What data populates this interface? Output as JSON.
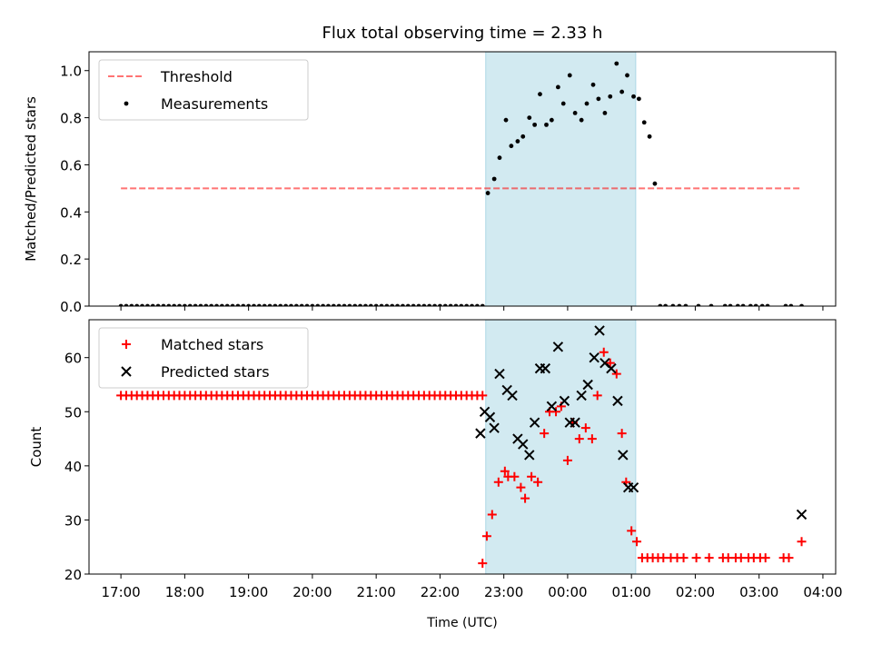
{
  "figure": {
    "title": "Flux total observing time = 2.33 h",
    "xlabel": "Time (UTC)"
  },
  "colors": {
    "highlight_band": "#add8e6",
    "threshold": "#ff0000",
    "measurements": "#000000",
    "matched": "#ff0000",
    "predicted": "#000000"
  },
  "chart_data": [
    {
      "type": "scatter",
      "panel": "top",
      "title": "Flux total observing time = 2.33 h",
      "xlabel": "",
      "ylabel": "Matched/Predicted stars",
      "x_unit": "hours since 17:00 UTC",
      "xlim": [
        -0.5,
        11.2
      ],
      "ylim": [
        0.0,
        1.08
      ],
      "yticks": [
        0.0,
        0.2,
        0.4,
        0.6,
        0.8,
        1.0
      ],
      "ytick_labels": [
        "0.0",
        "0.2",
        "0.4",
        "0.6",
        "0.8",
        "1.0"
      ],
      "grid": false,
      "legend": "top-left",
      "highlight_span": [
        "22:43",
        "01:04"
      ],
      "series": [
        {
          "name": "Threshold",
          "kind": "dashed-line",
          "x": [
            "17:00",
            "03:40"
          ],
          "y": [
            0.5,
            0.5
          ]
        },
        {
          "name": "Measurements",
          "kind": "dot",
          "x": [
            "17:00",
            "17:05",
            "17:10",
            "17:15",
            "17:20",
            "17:25",
            "17:30",
            "17:35",
            "17:40",
            "17:45",
            "17:50",
            "17:55",
            "18:00",
            "18:05",
            "18:10",
            "18:15",
            "18:20",
            "18:25",
            "18:30",
            "18:35",
            "18:40",
            "18:45",
            "18:50",
            "18:55",
            "19:00",
            "19:05",
            "19:10",
            "19:15",
            "19:20",
            "19:25",
            "19:30",
            "19:35",
            "19:40",
            "19:45",
            "19:50",
            "19:55",
            "20:00",
            "20:05",
            "20:10",
            "20:15",
            "20:20",
            "20:25",
            "20:30",
            "20:35",
            "20:40",
            "20:45",
            "20:50",
            "20:55",
            "21:00",
            "21:05",
            "21:10",
            "21:15",
            "21:20",
            "21:25",
            "21:30",
            "21:35",
            "21:40",
            "21:45",
            "21:50",
            "21:55",
            "22:00",
            "22:05",
            "22:10",
            "22:15",
            "22:20",
            "22:25",
            "22:30",
            "22:35",
            "22:40",
            "22:45",
            "22:51",
            "22:56",
            "23:02",
            "23:07",
            "23:13",
            "23:18",
            "23:24",
            "23:29",
            "23:34",
            "23:40",
            "23:45",
            "23:51",
            "23:56",
            "00:02",
            "00:07",
            "00:13",
            "00:18",
            "00:24",
            "00:29",
            "00:35",
            "00:40",
            "00:46",
            "00:51",
            "00:56",
            "01:02",
            "01:07",
            "01:12",
            "01:17",
            "01:22",
            "01:27",
            "01:32",
            "01:39",
            "01:45",
            "01:51",
            "02:03",
            "02:15",
            "02:28",
            "02:33",
            "02:40",
            "02:45",
            "02:52",
            "02:57",
            "03:03",
            "03:08",
            "03:25",
            "03:30",
            "03:40"
          ],
          "y": [
            0,
            0,
            0,
            0,
            0,
            0,
            0,
            0,
            0,
            0,
            0,
            0,
            0,
            0,
            0,
            0,
            0,
            0,
            0,
            0,
            0,
            0,
            0,
            0,
            0,
            0,
            0,
            0,
            0,
            0,
            0,
            0,
            0,
            0,
            0,
            0,
            0,
            0,
            0,
            0,
            0,
            0,
            0,
            0,
            0,
            0,
            0,
            0,
            0,
            0,
            0,
            0,
            0,
            0,
            0,
            0,
            0,
            0,
            0,
            0,
            0,
            0,
            0,
            0,
            0,
            0,
            0,
            0,
            0,
            0.48,
            0.54,
            0.63,
            0.79,
            0.68,
            0.7,
            0.72,
            0.8,
            0.77,
            0.9,
            0.77,
            0.79,
            0.93,
            0.86,
            0.98,
            0.82,
            0.79,
            0.86,
            0.94,
            0.88,
            0.82,
            0.89,
            1.03,
            0.91,
            0.98,
            0.89,
            0.88,
            0.78,
            0.72,
            0.52,
            0,
            0,
            0,
            0,
            0,
            0,
            0,
            0,
            0,
            0,
            0,
            0,
            0,
            0,
            0,
            0,
            0,
            0
          ]
        }
      ]
    },
    {
      "type": "scatter",
      "panel": "bottom",
      "xlabel": "Time (UTC)",
      "ylabel": "Count",
      "x_unit": "hours since 17:00 UTC",
      "xlim": [
        -0.5,
        11.2
      ],
      "ylim": [
        20,
        67
      ],
      "yticks": [
        20,
        30,
        40,
        50,
        60
      ],
      "ytick_labels": [
        "20",
        "30",
        "40",
        "50",
        "60"
      ],
      "xticks": [
        0,
        1,
        2,
        3,
        4,
        5,
        6,
        7,
        8,
        9,
        10,
        11
      ],
      "xtick_labels": [
        "17:00",
        "18:00",
        "19:00",
        "20:00",
        "21:00",
        "22:00",
        "23:00",
        "00:00",
        "01:00",
        "02:00",
        "03:00",
        "04:00"
      ],
      "grid": false,
      "legend": "top-left",
      "highlight_span": [
        "22:43",
        "01:04"
      ],
      "series": [
        {
          "name": "Matched stars",
          "kind": "plus",
          "x": [
            "17:00",
            "17:05",
            "17:10",
            "17:15",
            "17:20",
            "17:25",
            "17:30",
            "17:35",
            "17:40",
            "17:45",
            "17:50",
            "17:55",
            "18:00",
            "18:05",
            "18:10",
            "18:15",
            "18:20",
            "18:25",
            "18:30",
            "18:35",
            "18:40",
            "18:45",
            "18:50",
            "18:55",
            "19:00",
            "19:05",
            "19:10",
            "19:15",
            "19:20",
            "19:25",
            "19:30",
            "19:35",
            "19:40",
            "19:45",
            "19:50",
            "19:55",
            "20:00",
            "20:05",
            "20:10",
            "20:15",
            "20:20",
            "20:25",
            "20:30",
            "20:35",
            "20:40",
            "20:45",
            "20:50",
            "20:55",
            "21:00",
            "21:05",
            "21:10",
            "21:15",
            "21:20",
            "21:25",
            "21:30",
            "21:35",
            "21:40",
            "21:45",
            "21:50",
            "21:55",
            "22:00",
            "22:05",
            "22:10",
            "22:15",
            "22:20",
            "22:25",
            "22:30",
            "22:35",
            "22:40",
            "22:40",
            "22:44",
            "22:49",
            "22:55",
            "23:01",
            "23:04",
            "23:10",
            "23:16",
            "23:20",
            "23:26",
            "23:32",
            "23:38",
            "23:43",
            "23:49",
            "23:54",
            "00:00",
            "00:05",
            "00:11",
            "00:17",
            "00:23",
            "00:28",
            "00:34",
            "00:40",
            "00:46",
            "00:51",
            "00:55",
            "01:00",
            "01:05",
            "01:10",
            "01:15",
            "01:20",
            "01:25",
            "01:30",
            "01:37",
            "01:43",
            "01:49",
            "02:01",
            "02:13",
            "02:26",
            "02:31",
            "02:38",
            "02:43",
            "02:50",
            "02:55",
            "03:01",
            "03:06",
            "03:23",
            "03:28",
            "03:40"
          ],
          "y": [
            53,
            53,
            53,
            53,
            53,
            53,
            53,
            53,
            53,
            53,
            53,
            53,
            53,
            53,
            53,
            53,
            53,
            53,
            53,
            53,
            53,
            53,
            53,
            53,
            53,
            53,
            53,
            53,
            53,
            53,
            53,
            53,
            53,
            53,
            53,
            53,
            53,
            53,
            53,
            53,
            53,
            53,
            53,
            53,
            53,
            53,
            53,
            53,
            53,
            53,
            53,
            53,
            53,
            53,
            53,
            53,
            53,
            53,
            53,
            53,
            53,
            53,
            53,
            53,
            53,
            53,
            53,
            53,
            53,
            22,
            27,
            31,
            37,
            39,
            38,
            38,
            36,
            34,
            38,
            37,
            46,
            50,
            50,
            51,
            41,
            48,
            45,
            47,
            45,
            53,
            61,
            59,
            57,
            46,
            37,
            28,
            26,
            23,
            23,
            23,
            23,
            23,
            23,
            23,
            23,
            23,
            23,
            23,
            23,
            23,
            23,
            23,
            23,
            23,
            23,
            23,
            23,
            26
          ]
        },
        {
          "name": "Predicted stars",
          "kind": "x",
          "x": [
            "22:38",
            "22:42",
            "22:47",
            "22:51",
            "22:56",
            "23:03",
            "23:08",
            "23:13",
            "23:18",
            "23:24",
            "23:29",
            "23:34",
            "23:39",
            "23:45",
            "23:51",
            "23:57",
            "00:02",
            "00:07",
            "00:13",
            "00:19",
            "00:25",
            "00:30",
            "00:35",
            "00:41",
            "00:47",
            "00:52",
            "00:57",
            "01:02",
            "03:40"
          ],
          "y": [
            46,
            50,
            49,
            47,
            57,
            54,
            53,
            45,
            44,
            42,
            48,
            58,
            58,
            51,
            62,
            52,
            48,
            48,
            53,
            55,
            60,
            65,
            59,
            58,
            52,
            42,
            36,
            36,
            31
          ]
        }
      ]
    }
  ]
}
